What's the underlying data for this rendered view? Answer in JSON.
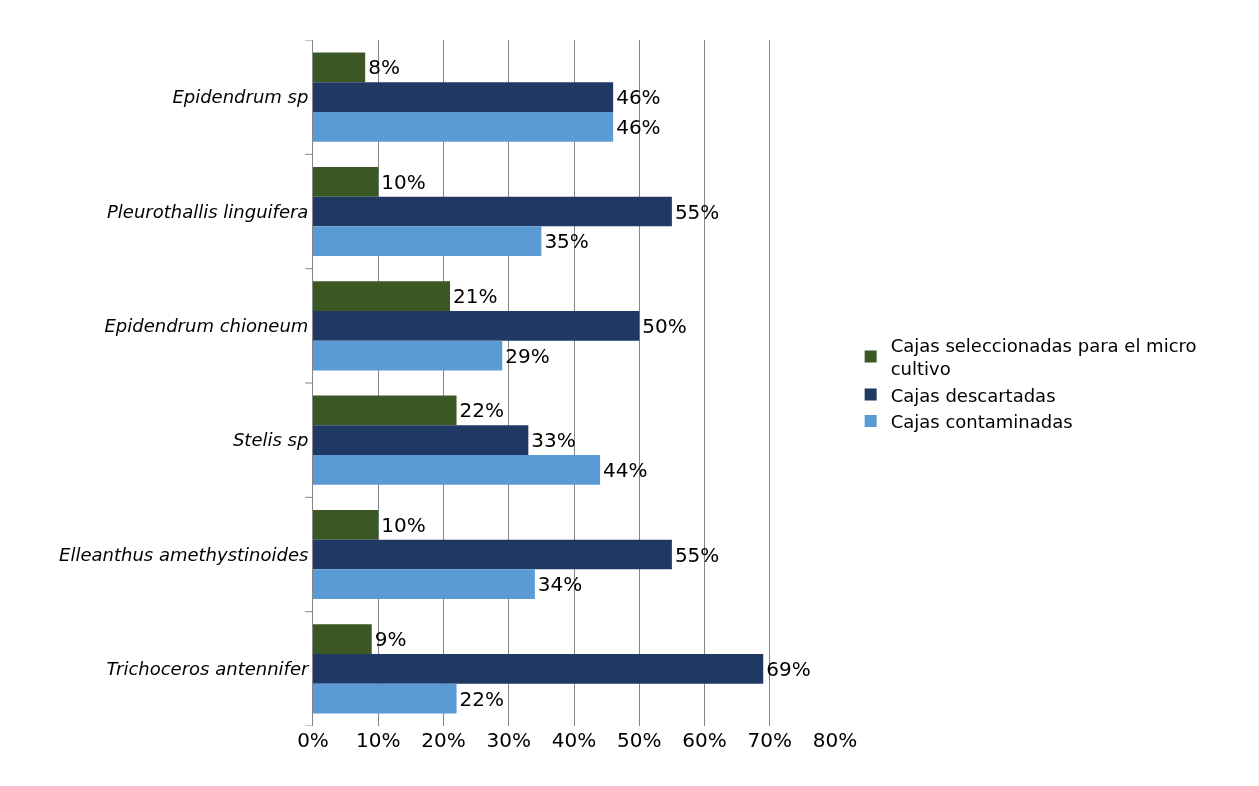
{
  "chart_data": {
    "type": "bar",
    "orientation": "horizontal",
    "categories": [
      "Epidendrum sp",
      "Pleurothallis linguifera",
      "Epidendrum chioneum",
      "Stelis sp",
      "Elleanthus amethystinoides",
      "Trichoceros antennifer"
    ],
    "series": [
      {
        "name": "Cajas seleccionadas para el micro cultivo",
        "color": "#3a5724",
        "values": [
          8,
          10,
          21,
          22,
          10,
          9
        ],
        "value_labels": [
          "8%",
          "10%",
          "21%",
          "22%",
          "10%",
          "9%"
        ]
      },
      {
        "name": "Cajas descartadas",
        "color": "#203864",
        "values": [
          46,
          55,
          50,
          33,
          55,
          69
        ],
        "value_labels": [
          "46%",
          "55%",
          "50%",
          "33%",
          "55%",
          "69%"
        ]
      },
      {
        "name": "Cajas contaminadas",
        "color": "#5b9bd5",
        "values": [
          46,
          35,
          29,
          44,
          34,
          22
        ],
        "value_labels": [
          "46%",
          "35%",
          "29%",
          "44%",
          "34%",
          "22%"
        ]
      }
    ],
    "xlim": [
      0,
      80
    ],
    "xticks": [
      {
        "value": 0,
        "label": "0%"
      },
      {
        "value": 10,
        "label": "10%"
      },
      {
        "value": 20,
        "label": "20%"
      },
      {
        "value": 30,
        "label": "30%"
      },
      {
        "value": 40,
        "label": "40%"
      },
      {
        "value": 50,
        "label": "50%"
      },
      {
        "value": 60,
        "label": "60%"
      },
      {
        "value": 70,
        "label": "70%"
      },
      {
        "value": 80,
        "label": "80%"
      }
    ],
    "grid": "x",
    "legend": "right"
  }
}
